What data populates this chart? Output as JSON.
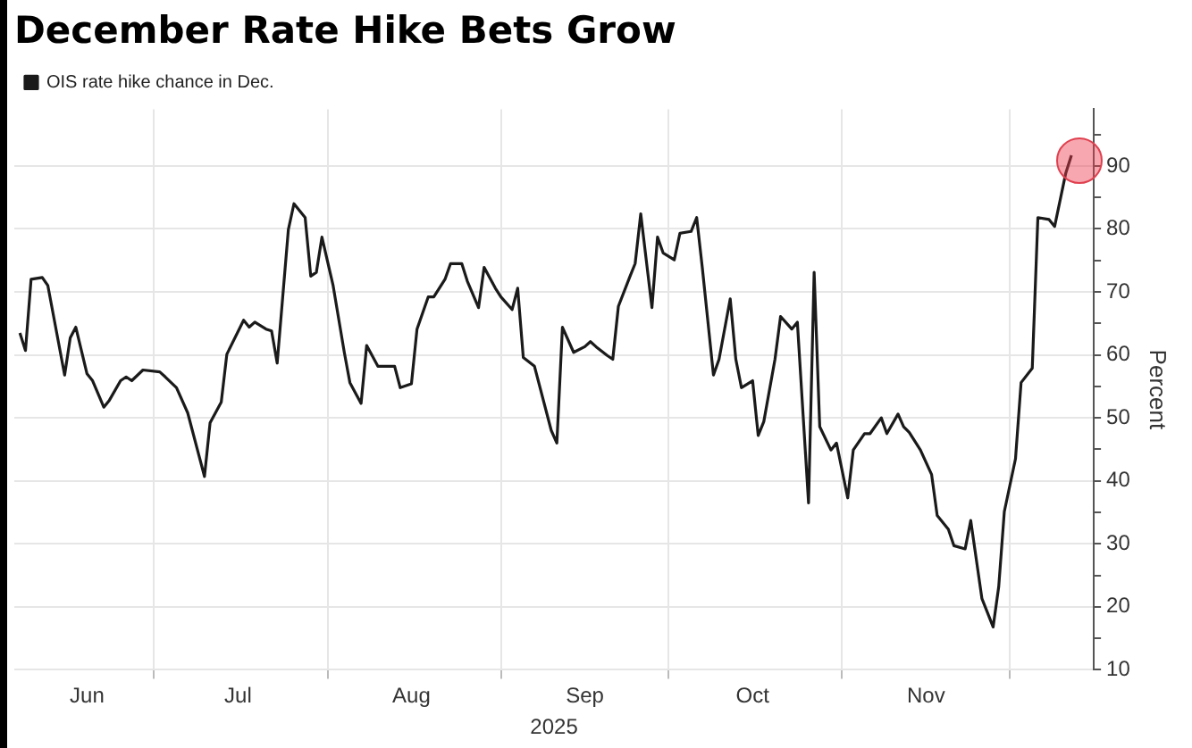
{
  "chart_data": {
    "type": "line",
    "title": "December Rate Hike Bets Grow",
    "xlabel": "2025",
    "ylabel": "Percent",
    "legend": "top left",
    "grid": true,
    "marker": "none",
    "line_style": "solid",
    "xlim": [
      "2025-06-06",
      "2025-12-16"
    ],
    "xticks": [
      {
        "value": "2025-06-19",
        "label": "Jun"
      },
      {
        "value": "2025-07-01",
        "label": null
      },
      {
        "value": "2025-07-16",
        "label": "Jul"
      },
      {
        "value": "2025-08-01",
        "label": null
      },
      {
        "value": "2025-08-16",
        "label": "Aug"
      },
      {
        "value": "2025-09-01",
        "label": null
      },
      {
        "value": "2025-09-16",
        "label": "Sep"
      },
      {
        "value": "2025-10-01",
        "label": null
      },
      {
        "value": "2025-10-16",
        "label": "Oct"
      },
      {
        "value": "2025-11-01",
        "label": null
      },
      {
        "value": "2025-11-16",
        "label": "Nov"
      },
      {
        "value": "2025-12-01",
        "label": null
      }
    ],
    "ylim": [
      10,
      99
    ],
    "yticks": [
      10,
      {
        "value": 15,
        "label": null
      },
      20,
      {
        "value": 25,
        "label": null
      },
      30,
      {
        "value": 35,
        "label": null
      },
      40,
      {
        "value": 45,
        "label": null
      },
      50,
      {
        "value": 55,
        "label": null
      },
      60,
      {
        "value": 65,
        "label": null
      },
      70,
      {
        "value": 75,
        "label": null
      },
      80,
      {
        "value": 85,
        "label": null
      },
      90,
      {
        "value": 95,
        "label": null
      }
    ],
    "x": [
      "2025-06-07",
      "2025-06-08",
      "2025-06-09",
      "2025-06-11",
      "2025-06-12",
      "2025-06-15",
      "2025-06-16",
      "2025-06-17",
      "2025-06-19",
      "2025-06-20",
      "2025-06-22",
      "2025-06-23",
      "2025-06-25",
      "2025-06-26",
      "2025-06-27",
      "2025-06-29",
      "2025-07-02",
      "2025-07-03",
      "2025-07-05",
      "2025-07-07",
      "2025-07-10",
      "2025-07-11",
      "2025-07-13",
      "2025-07-14",
      "2025-07-17",
      "2025-07-18",
      "2025-07-19",
      "2025-07-21",
      "2025-07-22",
      "2025-07-23",
      "2025-07-25",
      "2025-07-26",
      "2025-07-28",
      "2025-07-29",
      "2025-07-30",
      "2025-07-31",
      "2025-08-02",
      "2025-08-04",
      "2025-08-05",
      "2025-08-07",
      "2025-08-08",
      "2025-08-10",
      "2025-08-13",
      "2025-08-14",
      "2025-08-16",
      "2025-08-17",
      "2025-08-19",
      "2025-08-20",
      "2025-08-22",
      "2025-08-23",
      "2025-08-25",
      "2025-08-26",
      "2025-08-28",
      "2025-08-29",
      "2025-08-31",
      "2025-09-01",
      "2025-09-03",
      "2025-09-04",
      "2025-09-05",
      "2025-09-07",
      "2025-09-10",
      "2025-09-11",
      "2025-09-12",
      "2025-09-14",
      "2025-09-16",
      "2025-09-17",
      "2025-09-18",
      "2025-09-20",
      "2025-09-21",
      "2025-09-22",
      "2025-09-24",
      "2025-09-25",
      "2025-09-26",
      "2025-09-28",
      "2025-09-29",
      "2025-09-30",
      "2025-10-02",
      "2025-10-03",
      "2025-10-05",
      "2025-10-06",
      "2025-10-07",
      "2025-10-09",
      "2025-10-10",
      "2025-10-12",
      "2025-10-13",
      "2025-10-14",
      "2025-10-16",
      "2025-10-17",
      "2025-10-18",
      "2025-10-20",
      "2025-10-21",
      "2025-10-23",
      "2025-10-24",
      "2025-10-26",
      "2025-10-27",
      "2025-10-28",
      "2025-10-30",
      "2025-10-31",
      "2025-11-02",
      "2025-11-03",
      "2025-11-05",
      "2025-11-06",
      "2025-11-08",
      "2025-11-09",
      "2025-11-11",
      "2025-11-12",
      "2025-11-13",
      "2025-11-15",
      "2025-11-17",
      "2025-11-18",
      "2025-11-20",
      "2025-11-21",
      "2025-11-23",
      "2025-11-24",
      "2025-11-26",
      "2025-11-28",
      "2025-11-29",
      "2025-11-30",
      "2025-12-02",
      "2025-12-03",
      "2025-12-05",
      "2025-12-06",
      "2025-12-08",
      "2025-12-09",
      "2025-12-11",
      "2025-12-12"
    ],
    "series": [
      {
        "name": "OIS rate hike chance in Dec.",
        "color": "#1a1a1a",
        "values": [
          63.5,
          60.7,
          72,
          72.3,
          71,
          56.8,
          62.7,
          64.4,
          57,
          55.9,
          51.7,
          52.8,
          55.9,
          56.5,
          55.9,
          57.6,
          57.3,
          56.5,
          54.8,
          50.8,
          40.7,
          49.2,
          52.5,
          60.1,
          65.5,
          64.4,
          65.2,
          64.1,
          63.8,
          58.7,
          79.9,
          84,
          81.8,
          72.5,
          73.1,
          78.7,
          71,
          60.4,
          55.6,
          52.3,
          61.5,
          58.2,
          58.2,
          54.8,
          55.4,
          64.1,
          69.2,
          69.2,
          72,
          74.5,
          74.5,
          71.7,
          67.5,
          73.9,
          70.6,
          69.2,
          67.2,
          70.6,
          59.6,
          58.2,
          48,
          46,
          64.4,
          60.4,
          61.3,
          62.1,
          61.3,
          59.9,
          59.3,
          67.7,
          72.3,
          74.5,
          82.4,
          67.5,
          78.7,
          76.2,
          75.1,
          79.3,
          79.6,
          81.8,
          73.9,
          56.8,
          59.3,
          68.9,
          59.3,
          54.8,
          55.9,
          47.2,
          49.4,
          59.3,
          66.1,
          64.1,
          65.2,
          36.5,
          73.1,
          48.6,
          44.9,
          46,
          37.3,
          44.9,
          47.5,
          47.5,
          50,
          47.5,
          50.6,
          48.6,
          47.7,
          44.9,
          41,
          34.5,
          32.3,
          29.7,
          29.2,
          33.7,
          21.3,
          16.8,
          23.2,
          35.1,
          43.5,
          55.6,
          57.9,
          81.8,
          81.5,
          80.4,
          88.9,
          91.7
        ]
      }
    ]
  }
}
